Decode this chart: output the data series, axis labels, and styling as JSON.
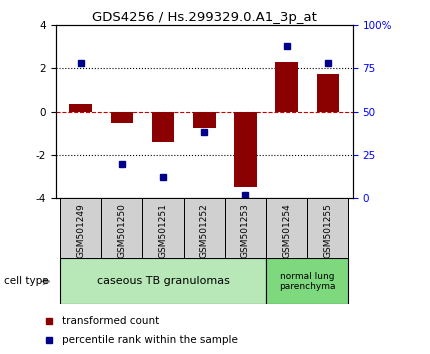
{
  "title": "GDS4256 / Hs.299329.0.A1_3p_at",
  "samples": [
    "GSM501249",
    "GSM501250",
    "GSM501251",
    "GSM501252",
    "GSM501253",
    "GSM501254",
    "GSM501255"
  ],
  "transformed_count": [
    0.35,
    -0.55,
    -1.4,
    -0.75,
    -3.5,
    2.3,
    1.75
  ],
  "percentile_rank": [
    78,
    20,
    12,
    38,
    2,
    88,
    78
  ],
  "ylim_left": [
    -4,
    4
  ],
  "ylim_right": [
    0,
    100
  ],
  "yticks_left": [
    -4,
    -2,
    0,
    2,
    4
  ],
  "ytick_labels_left": [
    "-4",
    "-2",
    "0",
    "2",
    "4"
  ],
  "yticks_right": [
    0,
    25,
    50,
    75,
    100
  ],
  "ytick_labels_right": [
    "0",
    "25",
    "50",
    "75",
    "100%"
  ],
  "group1_label": "caseous TB granulomas",
  "group2_label": "normal lung\nparenchyma",
  "cell_type_label": "cell type",
  "legend_red": "transformed count",
  "legend_blue": "percentile rank within the sample",
  "bar_color": "#8B0000",
  "dot_color": "#00008B",
  "zero_line_color": "#CC0000",
  "group1_box_color": "#b8e8b8",
  "group2_box_color": "#7ed87e",
  "sample_box_color": "#d0d0d0",
  "bar_width": 0.55,
  "n_group1": 5,
  "n_group2": 2
}
